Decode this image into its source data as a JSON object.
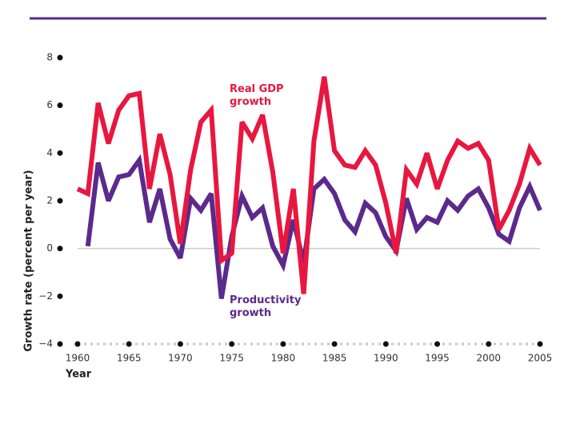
{
  "chart_data": {
    "type": "line",
    "x": [
      1960,
      1961,
      1962,
      1963,
      1964,
      1965,
      1966,
      1967,
      1968,
      1969,
      1970,
      1971,
      1972,
      1973,
      1974,
      1975,
      1976,
      1977,
      1978,
      1979,
      1980,
      1981,
      1982,
      1983,
      1984,
      1985,
      1986,
      1987,
      1988,
      1989,
      1990,
      1991,
      1992,
      1993,
      1994,
      1995,
      1996,
      1997,
      1998,
      1999,
      2000,
      2001,
      2002,
      2003,
      2004,
      2005
    ],
    "series": [
      {
        "name": "Real GDP growth",
        "color": "#e8173f",
        "values": [
          2.5,
          2.3,
          6.1,
          4.4,
          5.8,
          6.4,
          6.5,
          2.5,
          4.8,
          3.1,
          0.2,
          3.3,
          5.3,
          5.8,
          -0.5,
          -0.2,
          5.3,
          4.6,
          5.6,
          3.2,
          -0.2,
          2.5,
          -1.9,
          4.5,
          7.2,
          4.1,
          3.5,
          3.4,
          4.1,
          3.5,
          1.9,
          -0.2,
          3.3,
          2.7,
          4.0,
          2.5,
          3.7,
          4.5,
          4.2,
          4.4,
          3.7,
          0.8,
          1.6,
          2.7,
          4.2,
          3.5
        ]
      },
      {
        "name": "Productivity growth",
        "color": "#5b2a8c",
        "values": [
          null,
          0.1,
          3.6,
          2.0,
          3.0,
          3.1,
          3.7,
          1.1,
          2.5,
          0.4,
          -0.4,
          2.1,
          1.6,
          2.3,
          -2.1,
          0.5,
          2.2,
          1.3,
          1.7,
          0.1,
          -0.7,
          1.2,
          -0.6,
          2.5,
          2.9,
          2.3,
          1.2,
          0.7,
          1.9,
          1.5,
          0.5,
          -0.1,
          2.1,
          0.8,
          1.3,
          1.1,
          2.0,
          1.6,
          2.2,
          2.5,
          1.7,
          0.6,
          0.3,
          1.7,
          2.6,
          1.6
        ]
      }
    ],
    "xlabel": "Year",
    "ylabel": "Growth rate (percent per year)",
    "xlim": [
      1960,
      2005
    ],
    "xticks": [
      1960,
      1965,
      1970,
      1975,
      1980,
      1985,
      1990,
      1995,
      2000,
      2005
    ],
    "ylim": [
      -4,
      8
    ],
    "yticks": [
      {
        "value": -4,
        "label": "−4"
      },
      {
        "value": -2,
        "label": "−2"
      },
      0,
      2,
      4,
      6,
      8
    ]
  }
}
